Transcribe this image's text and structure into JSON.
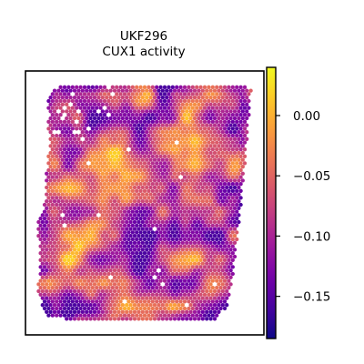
{
  "chart_data": {
    "type": "heatmap",
    "title_line1": "UKF296",
    "title_line2": "CUX1 activity",
    "xlabel": "",
    "ylabel": "",
    "colormap": "plasma",
    "colorbar": {
      "vmin": -0.185,
      "vmax": 0.04,
      "ticks": [
        0.0,
        -0.05,
        -0.1,
        -0.15
      ],
      "tick_labels": [
        "0.00",
        "−0.05",
        "−0.10",
        "−0.15"
      ]
    },
    "value_range_observed": [
      -0.18,
      0.04
    ],
    "spot_layout": "hexagonal spatial transcriptomics spots",
    "missing_spot_color": "#ffffff",
    "grid": false,
    "legend": "colorbar-right"
  }
}
